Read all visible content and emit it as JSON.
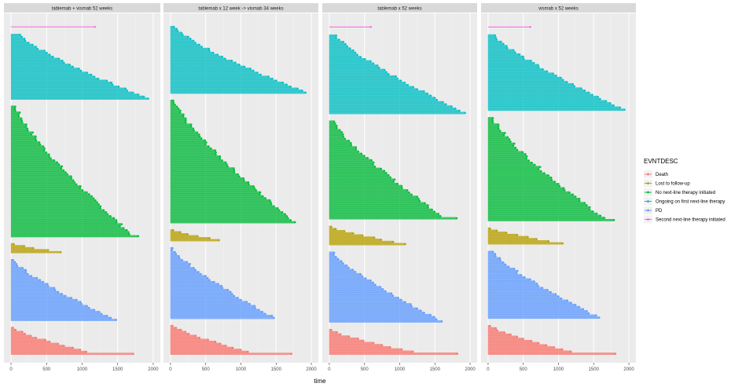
{
  "chart_data": {
    "type": "swimmer",
    "xlabel": "time",
    "xlim": [
      0,
      2000
    ],
    "x_ticks": [
      0,
      500,
      1000,
      1500,
      2000
    ],
    "x_tick_labels": [
      "0",
      "500",
      "1000",
      "1500",
      "2000"
    ],
    "grid": true,
    "legend_position": "right",
    "legend": {
      "title": "EVNTDESC",
      "entries": [
        {
          "label": "Death",
          "color": "#F8766D"
        },
        {
          "label": "Lost to follow-up",
          "color": "#B79F00"
        },
        {
          "label": "No next-line therapy initiated",
          "color": "#00BA38"
        },
        {
          "label": "Ongoing on first next-line therapy",
          "color": "#00BFC4"
        },
        {
          "label": "PD",
          "color": "#619CFF"
        },
        {
          "label": "Second next-line therapy initiated",
          "color": "#F564E3"
        }
      ]
    },
    "panels": [
      {
        "title": "tablemab + vismab 52 weeks",
        "groups": [
          {
            "event": "Death",
            "n": 14,
            "min": 30,
            "max": 1200,
            "outlier": 1720
          },
          {
            "event": "PD",
            "n": 31,
            "min": 30,
            "max": 1480,
            "outlier": null
          },
          {
            "event": "Lost to follow-up",
            "n": 5,
            "min": 40,
            "max": 700,
            "outlier": null
          },
          {
            "event": "No next-line therapy initiated",
            "n": 66,
            "min": 60,
            "max": 1720,
            "outlier": 1790
          },
          {
            "event": "Ongoing on first next-line therapy",
            "n": 33,
            "min": 130,
            "max": 1930,
            "outlier": null
          },
          {
            "event": "Second next-line therapy initiated",
            "n": 1,
            "min": 1180,
            "max": 1180,
            "outlier": null
          }
        ]
      },
      {
        "title": "tablemab x 12 week -> vismab 34 weeks",
        "groups": [
          {
            "event": "Death",
            "n": 15,
            "min": 30,
            "max": 1200,
            "outlier": 1720
          },
          {
            "event": "PD",
            "n": 36,
            "min": 30,
            "max": 1470,
            "outlier": null
          },
          {
            "event": "Lost to follow-up",
            "n": 6,
            "min": 40,
            "max": 690,
            "outlier": null
          },
          {
            "event": "No next-line therapy initiated",
            "n": 62,
            "min": 40,
            "max": 1770,
            "outlier": null
          },
          {
            "event": "Ongoing on first next-line therapy",
            "n": 34,
            "min": 50,
            "max": 1920,
            "outlier": null
          }
        ]
      },
      {
        "title": "tablemab x 52 weeks",
        "groups": [
          {
            "event": "Death",
            "n": 12,
            "min": 30,
            "max": 1320,
            "outlier": 1820
          },
          {
            "event": "PD",
            "n": 33,
            "min": 70,
            "max": 1600,
            "outlier": null
          },
          {
            "event": "Lost to follow-up",
            "n": 9,
            "min": 30,
            "max": 1080,
            "outlier": null
          },
          {
            "event": "No next-line therapy initiated",
            "n": 46,
            "min": 70,
            "max": 1650,
            "outlier": 1810
          },
          {
            "event": "Ongoing on first next-line therapy",
            "n": 37,
            "min": 100,
            "max": 1930,
            "outlier": null
          },
          {
            "event": "Second next-line therapy initiated",
            "n": 1,
            "min": 590,
            "max": 590,
            "outlier": null
          }
        ]
      },
      {
        "title": "vismab x 52 weeks",
        "groups": [
          {
            "event": "Death",
            "n": 14,
            "min": 30,
            "max": 1320,
            "outlier": 1810
          },
          {
            "event": "PD",
            "n": 32,
            "min": 70,
            "max": 1580,
            "outlier": null
          },
          {
            "event": "Lost to follow-up",
            "n": 8,
            "min": 30,
            "max": 1060,
            "outlier": null
          },
          {
            "event": "No next-line therapy initiated",
            "n": 49,
            "min": 70,
            "max": 1680,
            "outlier": 1790
          },
          {
            "event": "Ongoing on first next-line therapy",
            "n": 36,
            "min": 100,
            "max": 1940,
            "outlier": null
          },
          {
            "event": "Second next-line therapy initiated",
            "n": 1,
            "min": 600,
            "max": 600,
            "outlier": null
          }
        ]
      }
    ]
  }
}
